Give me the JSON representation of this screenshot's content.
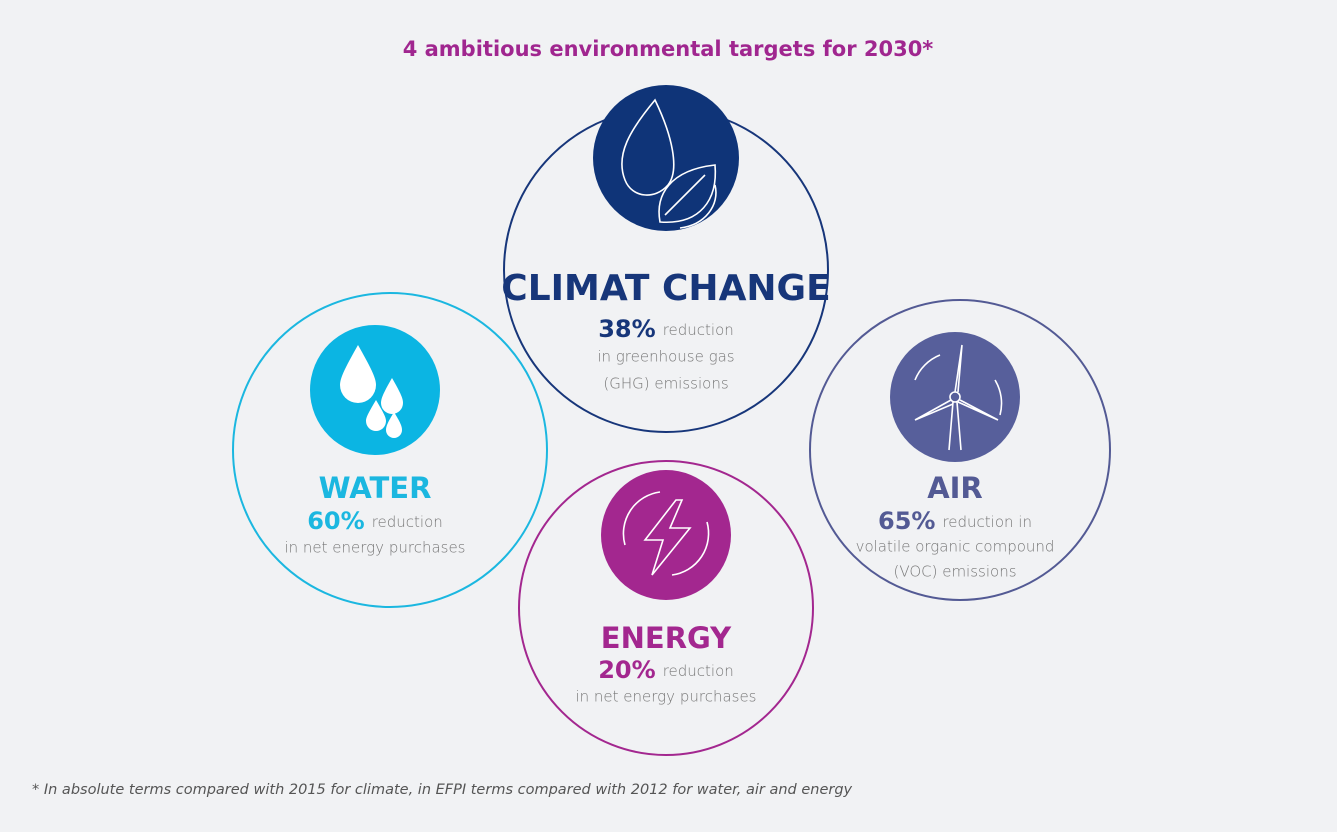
{
  "title": "4 ambitious environmental targets for 2030*",
  "targets": [
    {
      "name": "CLIMAT CHANGE",
      "percent": "38%",
      "suffix": "reduction",
      "lines": [
        "in greenhouse gas",
        "(GHG) emissions"
      ],
      "color": "#17367a",
      "icon_color": "#0f3478"
    },
    {
      "name": "WATER",
      "percent": "60%",
      "suffix": "reduction",
      "lines": [
        "in net energy purchases"
      ],
      "color": "#1bb7e0",
      "icon_color": "#0bb5e3"
    },
    {
      "name": "ENERGY",
      "percent": "20%",
      "suffix": "reduction",
      "lines": [
        "in net energy purchases"
      ],
      "color": "#a3278f",
      "icon_color": "#a3278f"
    },
    {
      "name": "AIR",
      "percent": "65%",
      "suffix": "reduction in",
      "lines": [
        "volatile organic compound",
        "(VOC) emissions"
      ],
      "color": "#535a94",
      "icon_color": "#575f9b"
    }
  ],
  "footnote": "* In absolute terms compared with 2015 for climate, in EFPI terms compared with 2012 for water, air and energy"
}
